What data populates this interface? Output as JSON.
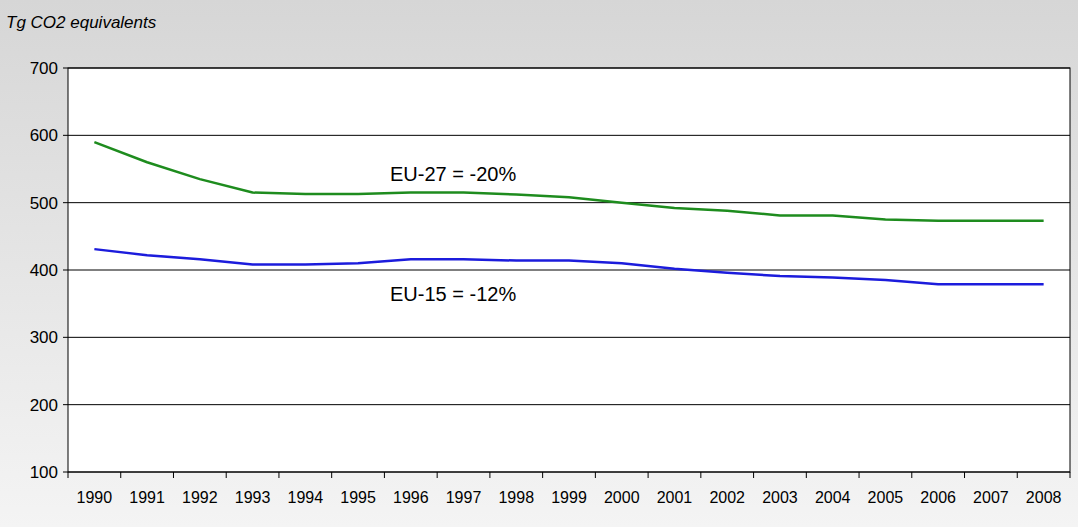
{
  "chart_data": {
    "type": "line",
    "y_label": "Tg CO2 equivalents",
    "categories": [
      "1990",
      "1991",
      "1992",
      "1993",
      "1994",
      "1995",
      "1996",
      "1997",
      "1998",
      "1999",
      "2000",
      "2001",
      "2002",
      "2003",
      "2004",
      "2005",
      "2006",
      "2007",
      "2008"
    ],
    "series": [
      {
        "color": "#1e8c1e",
        "values": [
          590,
          560,
          535,
          515,
          513,
          513,
          515,
          515,
          512,
          508,
          500,
          492,
          488,
          481,
          481,
          475,
          473,
          473,
          473
        ]
      },
      {
        "color": "#1c1cdc",
        "values": [
          431,
          422,
          416,
          408,
          408,
          410,
          416,
          416,
          414,
          414,
          410,
          402,
          396,
          391,
          389,
          385,
          379,
          379,
          379
        ]
      }
    ],
    "annotations": [
      "EU-27 = -20%",
      "EU-15 = -12%"
    ],
    "ylim": [
      100,
      700
    ],
    "yticks": [
      100,
      200,
      300,
      400,
      500,
      600,
      700
    ],
    "grid": true
  }
}
